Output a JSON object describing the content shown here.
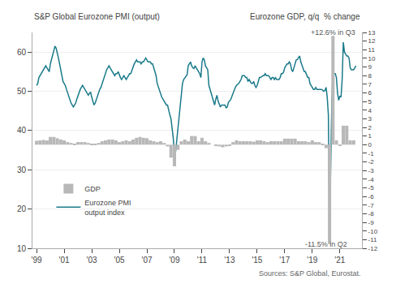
{
  "chart_data": {
    "type": "bar",
    "ylabel": "S&P Global Eurozone PMI (output)",
    "y2label": "Eurozone GDP, q/q  % change",
    "source": "Sources: S&P Global, Eurostat.",
    "annotations": [
      {
        "text": "+12.6% in Q3",
        "x": 2020.5,
        "y": 63.5
      },
      {
        "text": "-11.5% in Q2",
        "x": 2020.0,
        "y": 12.5
      }
    ],
    "xlim": [
      1998.7,
      2022.6
    ],
    "xticks": [
      {
        "value": 1999,
        "label": "'99"
      },
      {
        "value": 2001,
        "label": "'01"
      },
      {
        "value": 2003,
        "label": "'03"
      },
      {
        "value": 2005,
        "label": "'05"
      },
      {
        "value": 2007,
        "label": "'07"
      },
      {
        "value": 2009,
        "label": "'09"
      },
      {
        "value": 2011,
        "label": "'11"
      },
      {
        "value": 2013,
        "label": "'13"
      },
      {
        "value": 2015,
        "label": "'15"
      },
      {
        "value": 2017,
        "label": "'17"
      },
      {
        "value": 2019,
        "label": "'19"
      },
      {
        "value": 2021,
        "label": "'21"
      }
    ],
    "ylim": [
      10,
      65
    ],
    "yticks": [
      10,
      20,
      30,
      40,
      50,
      60
    ],
    "y2lim": [
      -12,
      13
    ],
    "y2ticks": [
      -12,
      -11,
      -10,
      -9,
      -8,
      -7,
      -6,
      -5,
      -4,
      -3,
      -2,
      -1,
      0,
      1,
      2,
      3,
      4,
      5,
      6,
      7,
      8,
      9,
      10,
      11,
      12,
      13
    ],
    "grid": "y",
    "legend": "lower left",
    "series": [
      {
        "name": "GDP",
        "type": "bar",
        "axis": "y2",
        "color": "#b8b8b8",
        "x": [
          1999.0,
          1999.25,
          1999.5,
          1999.75,
          2000.0,
          2000.25,
          2000.5,
          2000.75,
          2001.0,
          2001.25,
          2001.5,
          2001.75,
          2002.0,
          2002.25,
          2002.5,
          2002.75,
          2003.0,
          2003.25,
          2003.5,
          2003.75,
          2004.0,
          2004.25,
          2004.5,
          2004.75,
          2005.0,
          2005.25,
          2005.5,
          2005.75,
          2006.0,
          2006.25,
          2006.5,
          2006.75,
          2007.0,
          2007.25,
          2007.5,
          2007.75,
          2008.0,
          2008.25,
          2008.5,
          2008.75,
          2009.0,
          2009.25,
          2009.5,
          2009.75,
          2010.0,
          2010.25,
          2010.5,
          2010.75,
          2011.0,
          2011.25,
          2011.5,
          2011.75,
          2012.0,
          2012.25,
          2012.5,
          2012.75,
          2013.0,
          2013.25,
          2013.5,
          2013.75,
          2014.0,
          2014.25,
          2014.5,
          2014.75,
          2015.0,
          2015.25,
          2015.5,
          2015.75,
          2016.0,
          2016.25,
          2016.5,
          2016.75,
          2017.0,
          2017.25,
          2017.5,
          2017.75,
          2018.0,
          2018.25,
          2018.5,
          2018.75,
          2019.0,
          2019.25,
          2019.5,
          2019.75,
          2020.0,
          2020.25,
          2020.5,
          2020.75,
          2021.0,
          2021.25,
          2021.5,
          2021.75,
          2022.0
        ],
        "values": [
          0.45,
          0.5,
          0.55,
          0.5,
          0.9,
          0.9,
          0.75,
          0.6,
          0.5,
          0.3,
          0.2,
          0.1,
          0.3,
          0.3,
          0.3,
          0.2,
          0.1,
          0.1,
          0.2,
          0.4,
          0.5,
          0.6,
          0.6,
          0.5,
          0.3,
          0.4,
          0.5,
          0.4,
          0.6,
          0.8,
          0.9,
          0.8,
          0.75,
          0.5,
          0.4,
          0.3,
          0.4,
          0.2,
          -0.2,
          -1.5,
          -2.5,
          -0.6,
          0.4,
          0.6,
          0.4,
          1.0,
          1.0,
          0.4,
          0.8,
          0.4,
          0.2,
          0.0,
          -0.1,
          -0.2,
          -0.3,
          -0.2,
          -0.1,
          0.3,
          0.5,
          0.4,
          0.4,
          0.4,
          0.4,
          0.35,
          0.5,
          0.5,
          0.4,
          0.3,
          0.4,
          0.4,
          0.4,
          0.4,
          0.7,
          0.7,
          0.7,
          0.7,
          0.4,
          0.4,
          0.4,
          0.3,
          0.5,
          0.3,
          0.3,
          0.1,
          -0.4,
          -11.5,
          12.6,
          0.5,
          -0.1,
          2.2,
          2.2,
          0.5,
          0.5
        ]
      },
      {
        "name": "Eurozone PMI\noutput index",
        "type": "line",
        "color": "#1a7a8a",
        "x": [
          1999.0,
          1999.083,
          1999.167,
          1999.25,
          1999.333,
          1999.417,
          1999.5,
          1999.583,
          1999.667,
          1999.75,
          1999.833,
          1999.917,
          2000.0,
          2000.083,
          2000.167,
          2000.25,
          2000.333,
          2000.417,
          2000.5,
          2000.583,
          2000.667,
          2000.75,
          2000.833,
          2000.917,
          2001.0,
          2001.083,
          2001.167,
          2001.25,
          2001.333,
          2001.417,
          2001.5,
          2001.583,
          2001.667,
          2001.75,
          2001.833,
          2001.917,
          2002.0,
          2002.083,
          2002.167,
          2002.25,
          2002.333,
          2002.417,
          2002.5,
          2002.583,
          2002.667,
          2002.75,
          2002.833,
          2002.917,
          2003.0,
          2003.083,
          2003.167,
          2003.25,
          2003.333,
          2003.417,
          2003.5,
          2003.583,
          2003.667,
          2003.75,
          2003.833,
          2003.917,
          2004.0,
          2004.083,
          2004.167,
          2004.25,
          2004.333,
          2004.417,
          2004.5,
          2004.583,
          2004.667,
          2004.75,
          2004.833,
          2004.917,
          2005.0,
          2005.083,
          2005.167,
          2005.25,
          2005.333,
          2005.417,
          2005.5,
          2005.583,
          2005.667,
          2005.75,
          2005.833,
          2005.917,
          2006.0,
          2006.083,
          2006.167,
          2006.25,
          2006.333,
          2006.417,
          2006.5,
          2006.583,
          2006.667,
          2006.75,
          2006.833,
          2006.917,
          2007.0,
          2007.083,
          2007.167,
          2007.25,
          2007.333,
          2007.417,
          2007.5,
          2007.583,
          2007.667,
          2007.75,
          2007.833,
          2007.917,
          2008.0,
          2008.083,
          2008.167,
          2008.25,
          2008.333,
          2008.417,
          2008.5,
          2008.583,
          2008.667,
          2008.75,
          2008.833,
          2008.917,
          2009.0,
          2009.083,
          2009.167,
          2009.25,
          2009.333,
          2009.417,
          2009.5,
          2009.583,
          2009.667,
          2009.75,
          2009.833,
          2009.917,
          2010.0,
          2010.083,
          2010.167,
          2010.25,
          2010.333,
          2010.417,
          2010.5,
          2010.583,
          2010.667,
          2010.75,
          2010.833,
          2010.917,
          2011.0,
          2011.083,
          2011.167,
          2011.25,
          2011.333,
          2011.417,
          2011.5,
          2011.583,
          2011.667,
          2011.75,
          2011.833,
          2011.917,
          2012.0,
          2012.083,
          2012.167,
          2012.25,
          2012.333,
          2012.417,
          2012.5,
          2012.583,
          2012.667,
          2012.75,
          2012.833,
          2012.917,
          2013.0,
          2013.083,
          2013.167,
          2013.25,
          2013.333,
          2013.417,
          2013.5,
          2013.583,
          2013.667,
          2013.75,
          2013.833,
          2013.917,
          2014.0,
          2014.083,
          2014.167,
          2014.25,
          2014.333,
          2014.417,
          2014.5,
          2014.583,
          2014.667,
          2014.75,
          2014.833,
          2014.917,
          2015.0,
          2015.083,
          2015.167,
          2015.25,
          2015.333,
          2015.417,
          2015.5,
          2015.583,
          2015.667,
          2015.75,
          2015.833,
          2015.917,
          2016.0,
          2016.083,
          2016.167,
          2016.25,
          2016.333,
          2016.417,
          2016.5,
          2016.583,
          2016.667,
          2016.75,
          2016.833,
          2016.917,
          2017.0,
          2017.083,
          2017.167,
          2017.25,
          2017.333,
          2017.417,
          2017.5,
          2017.583,
          2017.667,
          2017.75,
          2017.833,
          2017.917,
          2018.0,
          2018.083,
          2018.167,
          2018.25,
          2018.333,
          2018.417,
          2018.5,
          2018.583,
          2018.667,
          2018.75,
          2018.833,
          2018.917,
          2019.0,
          2019.083,
          2019.167,
          2019.25,
          2019.333,
          2019.417,
          2019.5,
          2019.583,
          2019.667,
          2019.75,
          2019.833,
          2019.917,
          2020.0,
          2020.083,
          2020.167,
          2020.25,
          2020.333,
          2020.417,
          2020.5,
          2020.583,
          2020.667,
          2020.75,
          2020.833,
          2020.917,
          2021.0,
          2021.083,
          2021.167,
          2021.25,
          2021.333,
          2021.417,
          2021.5,
          2021.583,
          2021.667,
          2021.75,
          2021.833,
          2021.917,
          2022.0,
          2022.083,
          2022.167
        ],
        "values": [
          51.5,
          52.0,
          53.5,
          54.0,
          54.5,
          55.0,
          55.5,
          56.0,
          56.5,
          56.0,
          55.5,
          55.0,
          57.0,
          58.0,
          59.5,
          60.5,
          61.5,
          61.0,
          60.0,
          58.5,
          57.0,
          55.5,
          54.0,
          52.5,
          52.0,
          51.5,
          50.5,
          49.5,
          48.5,
          47.5,
          47.0,
          46.5,
          46.0,
          46.5,
          47.0,
          48.0,
          49.0,
          50.0,
          50.5,
          51.0,
          51.5,
          51.0,
          50.5,
          50.0,
          49.5,
          49.0,
          49.5,
          49.8,
          48.5,
          47.5,
          46.5,
          47.0,
          48.0,
          48.5,
          49.5,
          50.5,
          51.0,
          52.0,
          53.0,
          53.5,
          54.5,
          55.5,
          56.0,
          56.5,
          56.0,
          55.5,
          55.0,
          54.5,
          54.0,
          54.5,
          54.5,
          55.0,
          54.0,
          53.5,
          53.0,
          53.5,
          54.0,
          53.5,
          53.0,
          53.5,
          54.0,
          54.5,
          54.5,
          55.5,
          56.5,
          57.0,
          57.5,
          58.0,
          57.5,
          57.5,
          57.5,
          57.0,
          57.5,
          57.5,
          58.0,
          58.5,
          58.0,
          57.5,
          57.5,
          57.5,
          57.0,
          57.0,
          56.0,
          55.0,
          54.0,
          52.0,
          51.0,
          50.0,
          49.0,
          48.5,
          48.0,
          47.5,
          47.0,
          46.5,
          46.5,
          45.0,
          44.0,
          43.0,
          41.0,
          38.0,
          34.0,
          34.5,
          37.5,
          40.7,
          44.0,
          47.0,
          50.0,
          52.0,
          53.0,
          53.5,
          54.0,
          54.2,
          56.5,
          57.0,
          57.5,
          56.5,
          56.0,
          55.8,
          56.5,
          56.0,
          55.5,
          55.0,
          54.5,
          53.5,
          57.5,
          58.5,
          58.0,
          56.5,
          56.0,
          55.5,
          51.5,
          50.5,
          49.5,
          48.5,
          47.5,
          46.5,
          48.0,
          49.0,
          47.5,
          46.7,
          46.0,
          46.5,
          46.5,
          46.5,
          46.5,
          45.8,
          46.0,
          47.2,
          47.5,
          47.9,
          48.7,
          49.5,
          50.5,
          51.0,
          51.5,
          51.7,
          52.0,
          52.5,
          53.0,
          54.0,
          54.0,
          54.0,
          53.5,
          53.5,
          52.5,
          53.0,
          52.5,
          52.0,
          52.0,
          52.5,
          51.5,
          51.0,
          51.5,
          52.5,
          53.5,
          53.5,
          53.8,
          54.0,
          54.0,
          54.5,
          54.0,
          54.0,
          54.0,
          53.5,
          53.0,
          53.5,
          53.5,
          53.0,
          53.5,
          53.0,
          53.0,
          53.0,
          53.5,
          54.5,
          54.5,
          54.9,
          56.0,
          56.5,
          57.0,
          57.0,
          57.5,
          57.0,
          55.5,
          55.0,
          56.0,
          57.0,
          58.0,
          58.1,
          58.5,
          59.0,
          57.5,
          56.5,
          56.0,
          55.0,
          55.0,
          54.0,
          53.5,
          53.5,
          52.0,
          51.5,
          51.0,
          50.5,
          50.5,
          51.0,
          50.5,
          50.5,
          50.5,
          50.5,
          50.5,
          50.3,
          50.0,
          50.2,
          51.0,
          48.5,
          44.0,
          13.5,
          31.5,
          47.5,
          55.0,
          54.5,
          54.5,
          53.5,
          49.5,
          47.7,
          48.8,
          48.5,
          53.0,
          62.5,
          60.0,
          59.5,
          59.0,
          59.0,
          58.5,
          56.0,
          55.5,
          55.5,
          55.5,
          56.0,
          56.5
        ]
      }
    ]
  }
}
